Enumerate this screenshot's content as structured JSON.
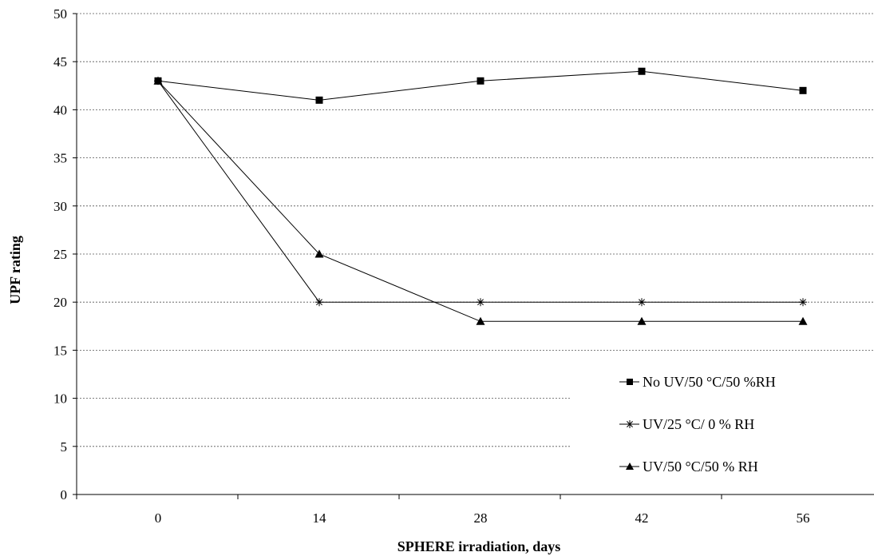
{
  "chart_data": {
    "type": "line",
    "xlabel": "SPHERE irradiation, days",
    "ylabel": "UPF rating",
    "ylim": [
      0,
      50
    ],
    "yticks": [
      0,
      5,
      10,
      15,
      20,
      25,
      30,
      35,
      40,
      45,
      50
    ],
    "categories": [
      "0",
      "14",
      "28",
      "42",
      "56"
    ],
    "grid": "horizontal dashed",
    "legend_position": "bottom-right",
    "series": [
      {
        "name": "No UV/50 °C/50 %RH",
        "marker": "square",
        "values": [
          43,
          41,
          43,
          44,
          42
        ]
      },
      {
        "name": "UV/25  °C/ 0 % RH",
        "marker": "asterisk",
        "values": [
          43,
          20,
          20,
          20,
          20
        ]
      },
      {
        "name": "UV/50 °C/50 % RH",
        "marker": "triangle",
        "values": [
          43,
          25,
          18,
          18,
          18
        ]
      }
    ]
  }
}
